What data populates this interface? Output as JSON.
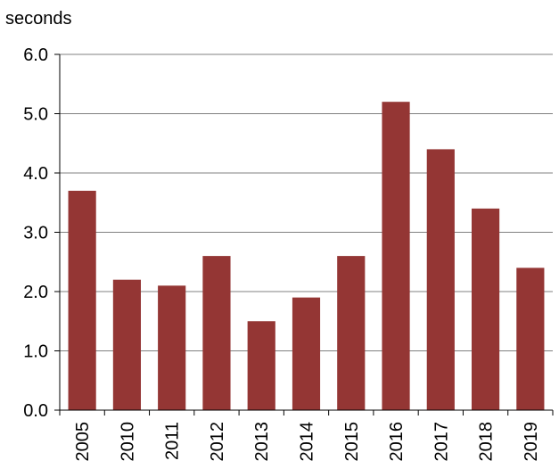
{
  "chart_data": {
    "type": "bar",
    "title": "",
    "ylabel": "seconds",
    "xlabel": "",
    "categories": [
      "2005",
      "2010",
      "2011",
      "2012",
      "2013",
      "2014",
      "2015",
      "2016",
      "2017",
      "2018",
      "2019"
    ],
    "values": [
      3.7,
      2.2,
      2.1,
      2.6,
      1.5,
      1.9,
      2.6,
      5.2,
      4.4,
      3.4,
      2.4
    ],
    "ylim": [
      0,
      6
    ],
    "yticks": [
      "0.0",
      "1.0",
      "2.0",
      "3.0",
      "4.0",
      "5.0",
      "6.0"
    ],
    "grid": true,
    "legend": "none",
    "bar_color": "#943634",
    "grid_color": "#808080"
  }
}
